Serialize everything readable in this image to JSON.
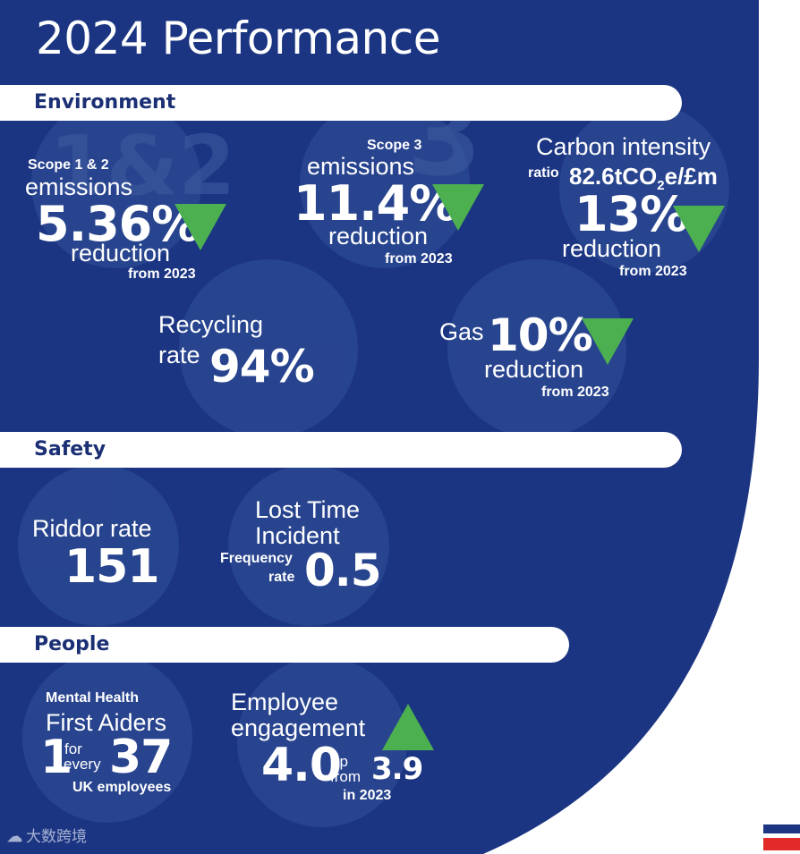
{
  "title": "2024 Performance",
  "colors": {
    "navy": "#1b3582",
    "bubble": "#2a4791",
    "green": "#4caf50",
    "red": "#e22a2a"
  },
  "sections": {
    "environment": "Environment",
    "safety": "Safety",
    "people": "People"
  },
  "environment": {
    "scope12": {
      "badge": "1&2",
      "label": "Scope 1 & 2",
      "sub": "emissions",
      "value": "5.36%",
      "direction": "down",
      "note": "reduction",
      "from": "from 2023"
    },
    "scope3": {
      "badge": "3",
      "label": "Scope 3",
      "sub": "emissions",
      "value": "11.4%",
      "direction": "down",
      "note": "reduction",
      "from": "from 2023"
    },
    "carbon": {
      "label": "Carbon intensity",
      "ratio_label": "ratio",
      "ratio_value": "82.6tCO",
      "ratio_sub": "2",
      "ratio_unit": "e/£m",
      "value": "13%",
      "direction": "down",
      "note": "reduction",
      "from": "from 2023"
    },
    "recycling": {
      "label1": "Recycling",
      "label2": "rate",
      "value": "94%"
    },
    "gas": {
      "label": "Gas",
      "value": "10%",
      "direction": "down",
      "note": "reduction",
      "from": "from 2023"
    }
  },
  "safety": {
    "riddor": {
      "label": "Riddor rate",
      "value": "151"
    },
    "lti": {
      "label1": "Lost Time",
      "label2": "Incident",
      "freq1": "Frequency",
      "freq2": "rate",
      "value": "0.5"
    }
  },
  "people": {
    "mhfa": {
      "label1": "Mental Health",
      "label2": "First Aiders",
      "num1": "1",
      "for": "for",
      "every": "every",
      "num2": "37",
      "note": "UK employees"
    },
    "engagement": {
      "label1": "Employee",
      "label2": "engagement",
      "value": "4.0",
      "direction": "up",
      "up": "up",
      "from": "from",
      "prev": "3.9",
      "year": "in 2023"
    }
  },
  "watermark": "大数跨境"
}
